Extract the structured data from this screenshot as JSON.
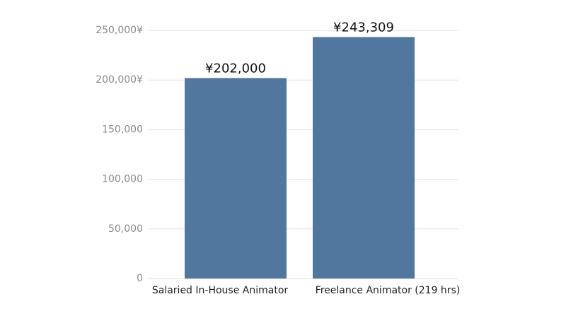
{
  "chart_data": {
    "type": "bar",
    "categories": [
      "Salaried In-House Animator",
      "Freelance Animator (219 hrs)"
    ],
    "values": [
      202000,
      243309
    ],
    "value_labels": [
      "¥202,000",
      "¥243,309"
    ],
    "color": "#52779f",
    "ylim": [
      0,
      250000
    ],
    "yticks": [
      0,
      {
        "value": 50000,
        "label": "50,000"
      },
      {
        "value": 100000,
        "label": "100,000"
      },
      {
        "value": 150000,
        "label": "150,000"
      },
      {
        "value": 200000,
        "label": "200,000¥"
      },
      {
        "value": 250000,
        "label": "250,000¥"
      }
    ],
    "grid": true
  }
}
